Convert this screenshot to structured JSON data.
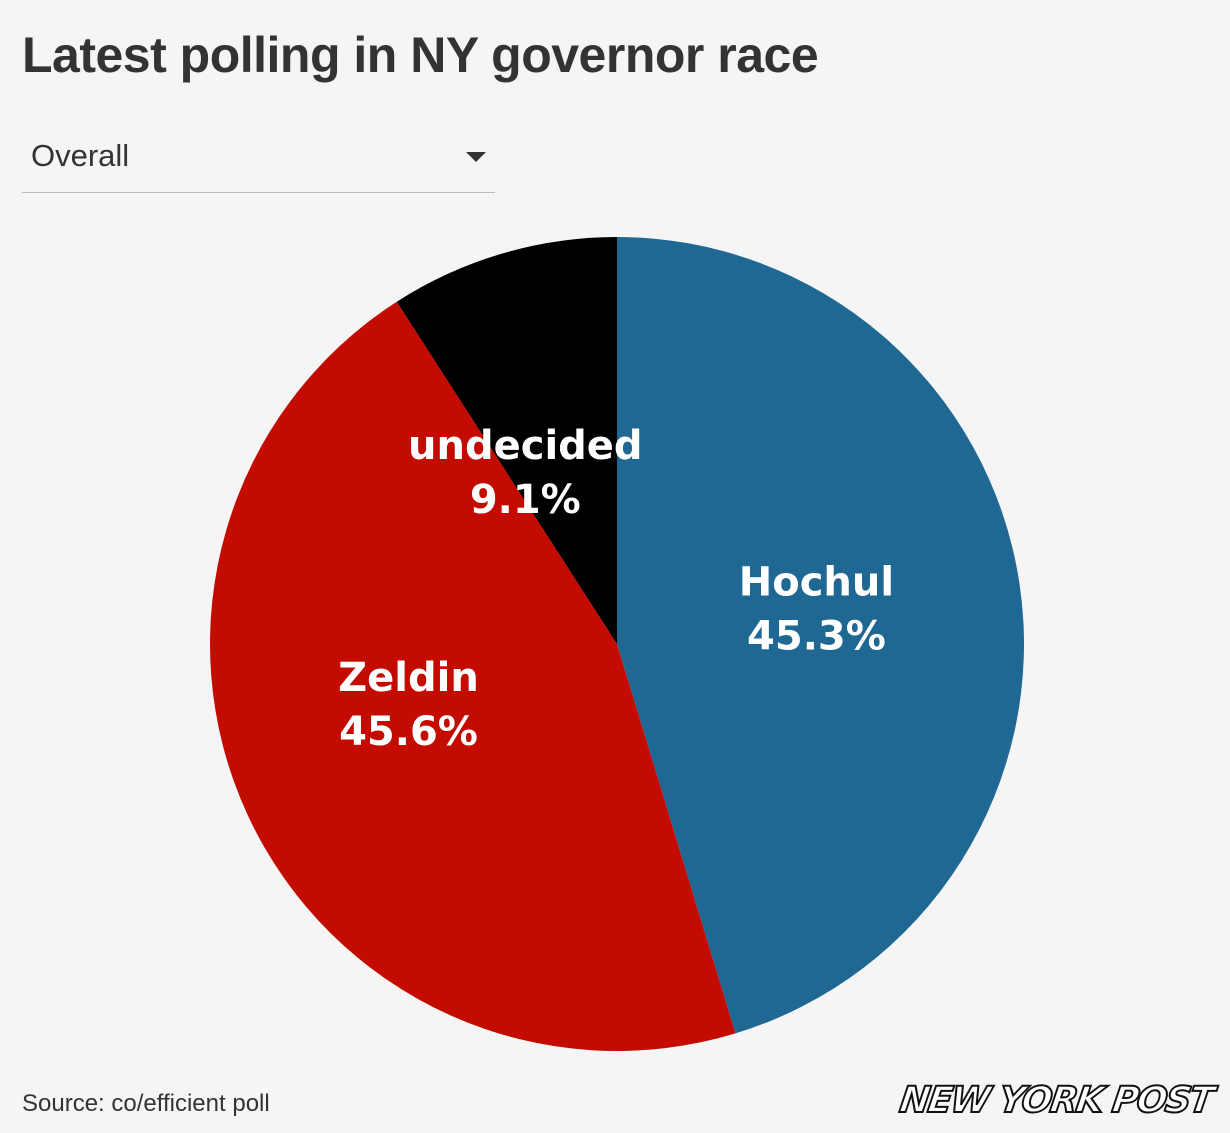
{
  "header": {
    "title": "Latest polling in NY governor race"
  },
  "filter": {
    "selected": "Overall"
  },
  "chart_data": {
    "type": "pie",
    "title": "Latest polling in NY governor race",
    "slices": [
      {
        "label": "Hochul",
        "value": 45.3,
        "value_label": "45.3%",
        "color": "#1f6893"
      },
      {
        "label": "Zeldin",
        "value": 45.6,
        "value_label": "45.6%",
        "color": "#c30b00"
      },
      {
        "label": "undecided",
        "value": 9.1,
        "value_label": "9.1%",
        "color": "#000000"
      }
    ],
    "start_angle": "12 o'clock",
    "direction": "clockwise"
  },
  "footer": {
    "source": "Source: co/efficient poll",
    "logo_text": "NEW YORK POST"
  }
}
